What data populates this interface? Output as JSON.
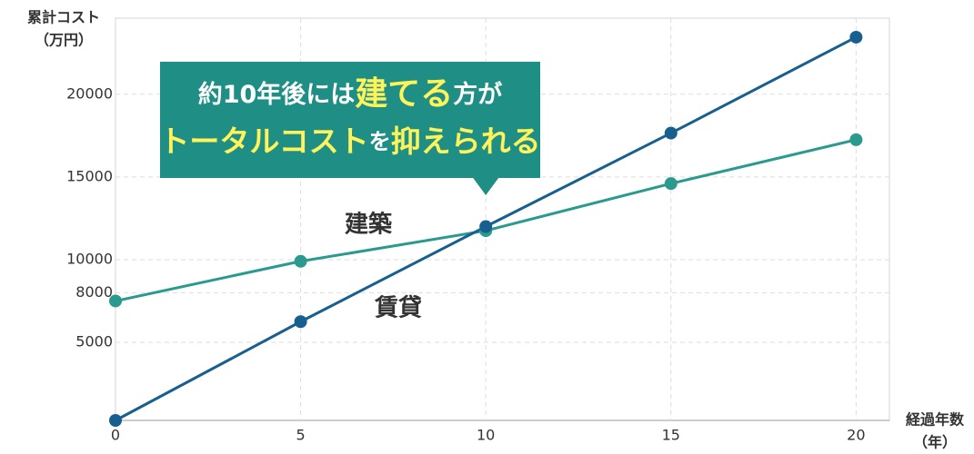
{
  "chart_data": {
    "type": "line",
    "y_label": [
      "累計コスト",
      "（万円）"
    ],
    "x_label": [
      "経過年数",
      "（年）"
    ],
    "x": [
      0,
      5,
      10,
      15,
      20
    ],
    "series": [
      {
        "name": "建築",
        "color": "#2a9a8e",
        "values": [
          7500,
          9900,
          11750,
          14600,
          17250
        ]
      },
      {
        "name": "賃貸",
        "color": "#175f8f",
        "values": [
          280,
          6250,
          12000,
          17650,
          23450
        ]
      }
    ],
    "xlim": [
      0,
      20.9
    ],
    "ylim": [
      280,
      24600
    ],
    "xticks": [
      0,
      5,
      10,
      15,
      20
    ],
    "yticks": [
      5000,
      8000,
      10000,
      15000,
      20000
    ],
    "grid": true,
    "callout": {
      "color": "#1f8f86",
      "x": 10,
      "lines": [
        [
          {
            "text": "約10年後には",
            "color": "#ffffff",
            "size": 27
          },
          {
            "text": "建てる",
            "color": "#fff35a",
            "size": 36
          },
          {
            "text": "方が",
            "color": "#ffffff",
            "size": 27
          }
        ],
        [
          {
            "text": "トータルコスト",
            "color": "#fff35a",
            "size": 33
          },
          {
            "text": "を",
            "color": "#ffffff",
            "size": 24
          },
          {
            "text": "抑えられる",
            "color": "#fff35a",
            "size": 33
          }
        ]
      ]
    }
  }
}
